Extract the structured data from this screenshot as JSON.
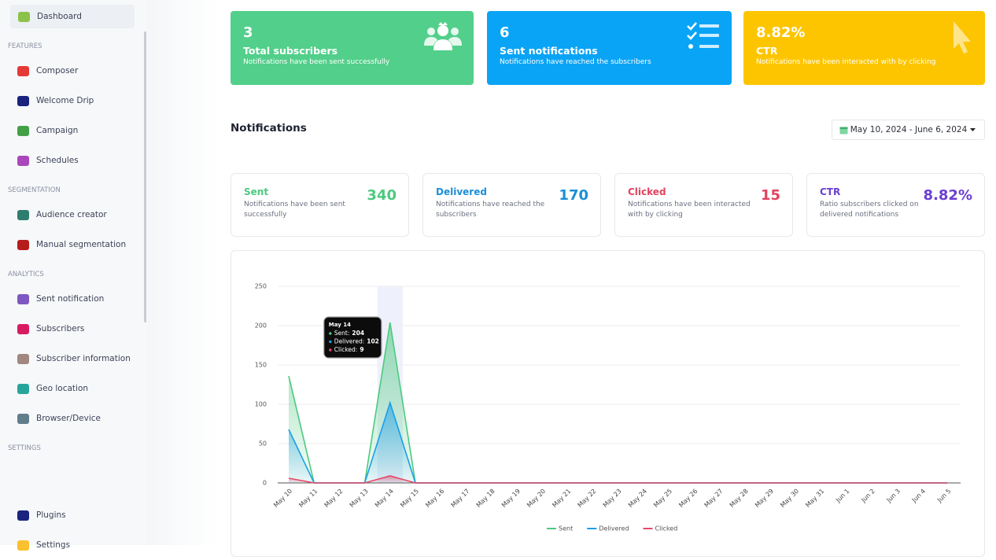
{
  "sidebar": {
    "sections": [
      {
        "items": [
          "Dashboard"
        ]
      },
      {
        "title": "FEATURES",
        "items": [
          "Composer",
          "Welcome Drip",
          "Campaign",
          "Schedules"
        ]
      },
      {
        "title": "SEGMENTATION",
        "items": [
          "Audience creator",
          "Manual segmentation"
        ]
      },
      {
        "title": "ANALYTICS",
        "items": [
          "Sent notification",
          "Subscribers",
          "Subscriber information",
          "Geo location",
          "Browser/Device"
        ]
      },
      {
        "title": "SETTINGS"
      }
    ],
    "bottom": [
      "Plugins",
      "Settings"
    ]
  },
  "summary_cards": [
    {
      "value": "3",
      "title": "Total subscribers",
      "subtitle": "Notifications have been sent successfully"
    },
    {
      "value": "6",
      "title": "Sent notifications",
      "subtitle": "Notifications have reached the subscribers"
    },
    {
      "value": "8.82%",
      "title": "CTR",
      "subtitle": "Notifications have been interacted with by clicking"
    }
  ],
  "section_title": "Notifications",
  "date_range": "May 10, 2024 - June 6, 2024",
  "stat_cards": [
    {
      "label": "Sent",
      "description": "Notifications have been sent successfully",
      "value": "340"
    },
    {
      "label": "Delivered",
      "description": "Notifications have reached the subscribers",
      "value": "170"
    },
    {
      "label": "Clicked",
      "description": "Notifications have been interacted with by clicking",
      "value": "15"
    },
    {
      "label": "CTR",
      "description": "Ratio subscribers clicked on delivered notifications",
      "value": "8.82%"
    }
  ],
  "chart_data": {
    "type": "area",
    "categories": [
      "May 10",
      "May 11",
      "May 12",
      "May 13",
      "May 14",
      "May 15",
      "May 16",
      "May 17",
      "May 18",
      "May 19",
      "May 20",
      "May 21",
      "May 22",
      "May 23",
      "May 24",
      "May 25",
      "May 26",
      "May 27",
      "May 28",
      "May 29",
      "May 30",
      "May 31",
      "Jun 1",
      "Jun 2",
      "Jun 3",
      "Jun 4",
      "Jun 5"
    ],
    "series": [
      {
        "name": "Sent",
        "color": "#4cc97f",
        "values": [
          136,
          0,
          0,
          0,
          204,
          0,
          0,
          0,
          0,
          0,
          0,
          0,
          0,
          0,
          0,
          0,
          0,
          0,
          0,
          0,
          0,
          0,
          0,
          0,
          0,
          0,
          0
        ]
      },
      {
        "name": "Delivered",
        "color": "#1a9fe6",
        "values": [
          68,
          0,
          0,
          0,
          102,
          0,
          0,
          0,
          0,
          0,
          0,
          0,
          0,
          0,
          0,
          0,
          0,
          0,
          0,
          0,
          0,
          0,
          0,
          0,
          0,
          0,
          0
        ]
      },
      {
        "name": "Clicked",
        "color": "#e5486a",
        "values": [
          6,
          0,
          0,
          0,
          9,
          0,
          0,
          0,
          0,
          0,
          0,
          0,
          0,
          0,
          0,
          0,
          0,
          0,
          0,
          0,
          0,
          0,
          0,
          0,
          0,
          0,
          0
        ]
      }
    ],
    "ylim": [
      0,
      250
    ],
    "yticks": [
      0,
      50,
      100,
      150,
      200,
      250
    ],
    "grid": true,
    "legend": "bottom",
    "tooltip": {
      "title": "May 14",
      "items": [
        {
          "label": "Sent:",
          "value": "204"
        },
        {
          "label": "Delivered:",
          "value": "102"
        },
        {
          "label": "Clicked:",
          "value": "9"
        }
      ]
    }
  }
}
